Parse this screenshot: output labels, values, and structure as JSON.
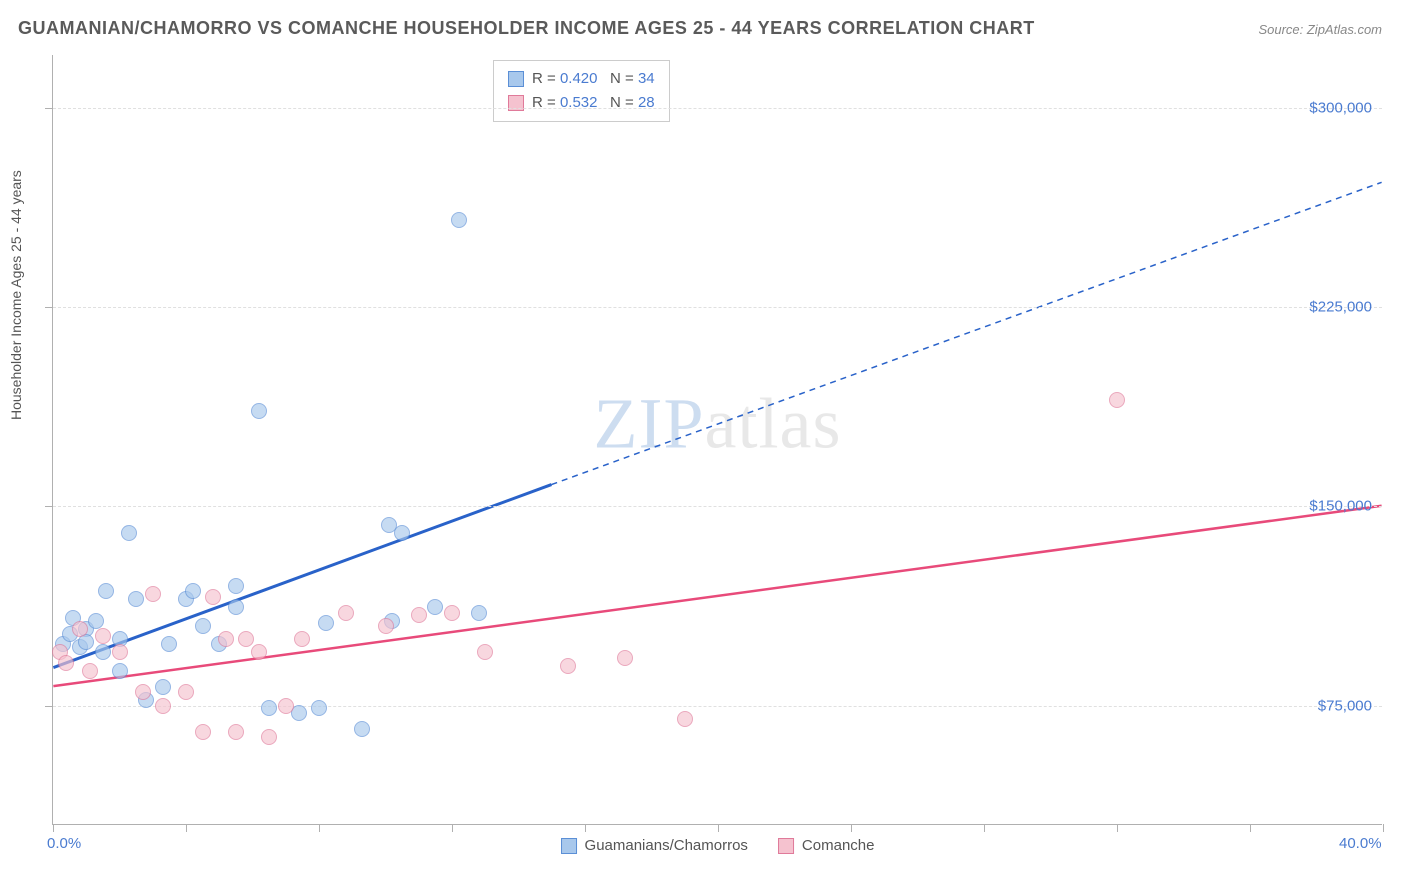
{
  "title": "GUAMANIAN/CHAMORRO VS COMANCHE HOUSEHOLDER INCOME AGES 25 - 44 YEARS CORRELATION CHART",
  "source": "Source: ZipAtlas.com",
  "y_axis_label": "Householder Income Ages 25 - 44 years",
  "watermark_a": "ZIP",
  "watermark_b": "atlas",
  "chart": {
    "type": "scatter",
    "xlim": [
      0,
      40
    ],
    "ylim": [
      30000,
      320000
    ],
    "x_ticks": [
      0,
      4,
      8,
      12,
      16,
      20,
      24,
      28,
      32,
      36,
      40
    ],
    "x_tick_labels_shown": {
      "0": "0.0%",
      "40": "40.0%"
    },
    "y_ticks": [
      75000,
      150000,
      225000,
      300000
    ],
    "y_tick_labels": [
      "$75,000",
      "$150,000",
      "$225,000",
      "$300,000"
    ],
    "grid_color": "#e0e0e0",
    "background_color": "#ffffff",
    "axis_color": "#b0b0b0"
  },
  "series": [
    {
      "name": "Guamanians/Chamorros",
      "color_fill": "#a8c8ec",
      "color_stroke": "#5b8fd6",
      "trend_color": "#2962c9",
      "R": "0.420",
      "N": "34",
      "trend": {
        "x1": 0,
        "y1": 89000,
        "x2_solid": 15,
        "y2_solid": 158000,
        "x2": 40,
        "y2": 272000
      },
      "points": [
        {
          "x": 0.3,
          "y": 98000
        },
        {
          "x": 0.5,
          "y": 102000
        },
        {
          "x": 0.6,
          "y": 108000
        },
        {
          "x": 0.8,
          "y": 97000
        },
        {
          "x": 1.0,
          "y": 104000
        },
        {
          "x": 1.0,
          "y": 99000
        },
        {
          "x": 1.3,
          "y": 107000
        },
        {
          "x": 1.5,
          "y": 95000
        },
        {
          "x": 1.6,
          "y": 118000
        },
        {
          "x": 2.0,
          "y": 100000
        },
        {
          "x": 2.0,
          "y": 88000
        },
        {
          "x": 2.3,
          "y": 140000
        },
        {
          "x": 2.5,
          "y": 115000
        },
        {
          "x": 2.8,
          "y": 77000
        },
        {
          "x": 3.3,
          "y": 82000
        },
        {
          "x": 3.5,
          "y": 98000
        },
        {
          "x": 4.0,
          "y": 115000
        },
        {
          "x": 4.2,
          "y": 118000
        },
        {
          "x": 4.5,
          "y": 105000
        },
        {
          "x": 5.0,
          "y": 98000
        },
        {
          "x": 5.5,
          "y": 120000
        },
        {
          "x": 5.5,
          "y": 112000
        },
        {
          "x": 6.2,
          "y": 186000
        },
        {
          "x": 6.5,
          "y": 74000
        },
        {
          "x": 7.4,
          "y": 72000
        },
        {
          "x": 8.0,
          "y": 74000
        },
        {
          "x": 8.2,
          "y": 106000
        },
        {
          "x": 9.3,
          "y": 66000
        },
        {
          "x": 10.1,
          "y": 143000
        },
        {
          "x": 10.2,
          "y": 107000
        },
        {
          "x": 10.5,
          "y": 140000
        },
        {
          "x": 11.5,
          "y": 112000
        },
        {
          "x": 12.2,
          "y": 258000
        },
        {
          "x": 12.8,
          "y": 110000
        }
      ]
    },
    {
      "name": "Comanche",
      "color_fill": "#f5c2cf",
      "color_stroke": "#e07a9a",
      "trend_color": "#e84a7a",
      "R": "0.532",
      "N": "28",
      "trend": {
        "x1": 0,
        "y1": 82000,
        "x2_solid": 40,
        "y2_solid": 150000,
        "x2": 40,
        "y2": 150000
      },
      "points": [
        {
          "x": 0.2,
          "y": 95000
        },
        {
          "x": 0.4,
          "y": 91000
        },
        {
          "x": 0.8,
          "y": 104000
        },
        {
          "x": 1.1,
          "y": 88000
        },
        {
          "x": 1.5,
          "y": 101000
        },
        {
          "x": 2.0,
          "y": 95000
        },
        {
          "x": 2.7,
          "y": 80000
        },
        {
          "x": 3.0,
          "y": 117000
        },
        {
          "x": 3.3,
          "y": 75000
        },
        {
          "x": 4.0,
          "y": 80000
        },
        {
          "x": 4.5,
          "y": 65000
        },
        {
          "x": 4.8,
          "y": 116000
        },
        {
          "x": 5.2,
          "y": 100000
        },
        {
          "x": 5.5,
          "y": 65000
        },
        {
          "x": 5.8,
          "y": 100000
        },
        {
          "x": 6.2,
          "y": 95000
        },
        {
          "x": 6.5,
          "y": 63000
        },
        {
          "x": 7.0,
          "y": 75000
        },
        {
          "x": 7.5,
          "y": 100000
        },
        {
          "x": 8.8,
          "y": 110000
        },
        {
          "x": 10.0,
          "y": 105000
        },
        {
          "x": 11.0,
          "y": 109000
        },
        {
          "x": 12.0,
          "y": 110000
        },
        {
          "x": 13.0,
          "y": 95000
        },
        {
          "x": 15.5,
          "y": 90000
        },
        {
          "x": 17.2,
          "y": 93000
        },
        {
          "x": 19.0,
          "y": 70000
        },
        {
          "x": 32.0,
          "y": 190000
        }
      ]
    }
  ],
  "bottom_legend": [
    {
      "label": "Guamanians/Chamorros",
      "swatch_class": "blue"
    },
    {
      "label": "Comanche",
      "swatch_class": "pink"
    }
  ]
}
